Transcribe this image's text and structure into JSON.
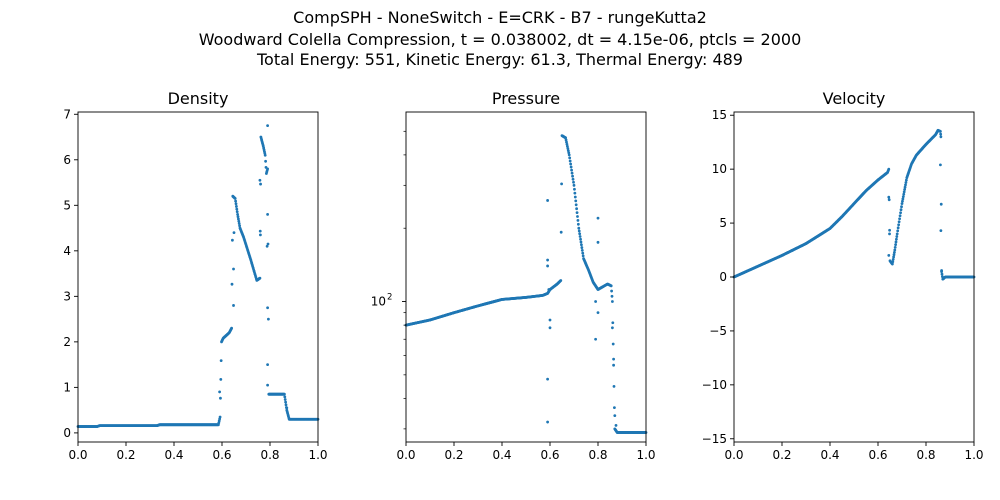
{
  "figure": {
    "title_lines": [
      "CompSPH - NoneSwitch - E=CRK - B7 - rungeKutta2",
      "Woodward Colella Compression, t = 0.038002, dt = 4.15e-06, ptcls = 2000",
      "Total Energy: 551, Kinetic Energy: 61.3, Thermal Energy: 489"
    ],
    "marker_color": "#1f77b4"
  },
  "chart_data": [
    {
      "type": "scatter",
      "title": "Density",
      "xlabel": "",
      "ylabel": "",
      "xlim": [
        0.0,
        1.0
      ],
      "ylim": [
        -0.2,
        7.05
      ],
      "yscale": "linear",
      "xticks": [
        0.0,
        0.2,
        0.4,
        0.6,
        0.8,
        1.0
      ],
      "xtick_labels": [
        "0.0",
        "0.2",
        "0.4",
        "0.6",
        "0.8",
        "1.0"
      ],
      "yticks": [
        0,
        1,
        2,
        3,
        4,
        5,
        6,
        7
      ],
      "ytick_labels": [
        "0",
        "1",
        "2",
        "3",
        "4",
        "5",
        "6",
        "7"
      ],
      "curve": [
        [
          0.0,
          0.14
        ],
        [
          0.08,
          0.14
        ],
        [
          0.09,
          0.16
        ],
        [
          0.33,
          0.16
        ],
        [
          0.34,
          0.18
        ],
        [
          0.585,
          0.18
        ],
        [
          0.592,
          0.35
        ],
        [
          0.598,
          2.0
        ],
        [
          0.605,
          2.08
        ],
        [
          0.63,
          2.2
        ],
        [
          0.64,
          2.3
        ],
        [
          0.645,
          5.2
        ],
        [
          0.655,
          5.15
        ],
        [
          0.665,
          4.8
        ],
        [
          0.675,
          4.5
        ],
        [
          0.69,
          4.3
        ],
        [
          0.72,
          3.8
        ],
        [
          0.745,
          3.35
        ],
        [
          0.758,
          3.4
        ],
        [
          0.762,
          6.5
        ],
        [
          0.772,
          6.3
        ],
        [
          0.78,
          6.1
        ],
        [
          0.785,
          5.7
        ],
        [
          0.79,
          5.8
        ],
        [
          0.795,
          0.85
        ],
        [
          0.86,
          0.85
        ],
        [
          0.87,
          0.5
        ],
        [
          0.88,
          0.3
        ],
        [
          1.0,
          0.3
        ]
      ],
      "scatter": [
        [
          0.59,
          0.9
        ],
        [
          0.648,
          3.6
        ],
        [
          0.648,
          2.8
        ],
        [
          0.65,
          4.4
        ],
        [
          0.76,
          4.35
        ],
        [
          0.758,
          5.55
        ],
        [
          0.79,
          6.75
        ],
        [
          0.79,
          4.8
        ],
        [
          0.788,
          4.1
        ],
        [
          0.79,
          2.75
        ],
        [
          0.79,
          1.5
        ],
        [
          0.79,
          1.05
        ],
        [
          0.87,
          0.55
        ]
      ]
    },
    {
      "type": "scatter",
      "title": "Pressure",
      "xlabel": "",
      "ylabel": "",
      "xlim": [
        0.0,
        1.0
      ],
      "ylim": [
        26.5,
        600
      ],
      "yscale": "log",
      "xticks": [
        0.0,
        0.2,
        0.4,
        0.6,
        0.8,
        1.0
      ],
      "xtick_labels": [
        "0.0",
        "0.2",
        "0.4",
        "0.6",
        "0.8",
        "1.0"
      ],
      "yticks_major": [
        100
      ],
      "yticks_minor": [
        30,
        40,
        50,
        60,
        70,
        80,
        90,
        200,
        300,
        400,
        500
      ],
      "curve": [
        [
          0.0,
          80
        ],
        [
          0.1,
          84
        ],
        [
          0.2,
          90
        ],
        [
          0.3,
          96
        ],
        [
          0.4,
          102
        ],
        [
          0.5,
          104
        ],
        [
          0.57,
          106
        ],
        [
          0.59,
          108
        ],
        [
          0.6,
          112
        ],
        [
          0.63,
          118
        ],
        [
          0.645,
          122
        ],
        [
          0.65,
          480
        ],
        [
          0.665,
          470
        ],
        [
          0.68,
          400
        ],
        [
          0.7,
          300
        ],
        [
          0.72,
          200
        ],
        [
          0.74,
          150
        ],
        [
          0.76,
          135
        ],
        [
          0.78,
          120
        ],
        [
          0.8,
          112
        ],
        [
          0.82,
          115
        ],
        [
          0.84,
          118
        ],
        [
          0.855,
          116
        ],
        [
          0.86,
          100
        ],
        [
          0.87,
          30
        ],
        [
          0.88,
          29
        ],
        [
          1.0,
          29
        ]
      ],
      "scatter": [
        [
          0.59,
          260
        ],
        [
          0.59,
          148
        ],
        [
          0.59,
          140
        ],
        [
          0.6,
          84
        ],
        [
          0.6,
          78
        ],
        [
          0.59,
          48
        ],
        [
          0.59,
          32
        ],
        [
          0.595,
          112
        ],
        [
          0.8,
          220
        ],
        [
          0.8,
          175
        ],
        [
          0.79,
          100
        ],
        [
          0.8,
          90
        ],
        [
          0.79,
          70
        ],
        [
          0.86,
          78
        ],
        [
          0.865,
          58
        ],
        [
          0.87,
          34
        ],
        [
          0.875,
          31
        ]
      ]
    },
    {
      "type": "scatter",
      "title": "Velocity",
      "xlabel": "",
      "ylabel": "",
      "xlim": [
        0.0,
        1.0
      ],
      "ylim": [
        -15.3,
        15.3
      ],
      "yscale": "linear",
      "xticks": [
        0.0,
        0.2,
        0.4,
        0.6,
        0.8,
        1.0
      ],
      "xtick_labels": [
        "0.0",
        "0.2",
        "0.4",
        "0.6",
        "0.8",
        "1.0"
      ],
      "yticks": [
        -15,
        -10,
        -5,
        0,
        5,
        10,
        15
      ],
      "ytick_labels": [
        "−15",
        "−10",
        "−5",
        "0",
        "5",
        "10",
        "15"
      ],
      "curve": [
        [
          0.0,
          0.0
        ],
        [
          0.1,
          1.0
        ],
        [
          0.2,
          2.0
        ],
        [
          0.3,
          3.1
        ],
        [
          0.35,
          3.8
        ],
        [
          0.4,
          4.5
        ],
        [
          0.45,
          5.6
        ],
        [
          0.5,
          6.8
        ],
        [
          0.55,
          8.0
        ],
        [
          0.6,
          9.0
        ],
        [
          0.64,
          9.7
        ],
        [
          0.645,
          10.0
        ],
        [
          0.65,
          1.5
        ],
        [
          0.66,
          1.2
        ],
        [
          0.67,
          2.5
        ],
        [
          0.68,
          4.0
        ],
        [
          0.7,
          6.8
        ],
        [
          0.72,
          9.2
        ],
        [
          0.74,
          10.5
        ],
        [
          0.76,
          11.3
        ],
        [
          0.8,
          12.3
        ],
        [
          0.84,
          13.2
        ],
        [
          0.85,
          13.6
        ],
        [
          0.86,
          13.5
        ],
        [
          0.862,
          13.0
        ],
        [
          0.865,
          0.5
        ],
        [
          0.87,
          -0.2
        ],
        [
          0.88,
          0.0
        ],
        [
          1.0,
          0.0
        ]
      ],
      "scatter": [
        [
          0.645,
          7.4
        ],
        [
          0.648,
          4.0
        ],
        [
          0.645,
          2.0
        ],
        [
          0.86,
          10.4
        ],
        [
          0.862,
          4.3
        ],
        [
          0.865,
          0.6
        ]
      ]
    }
  ]
}
